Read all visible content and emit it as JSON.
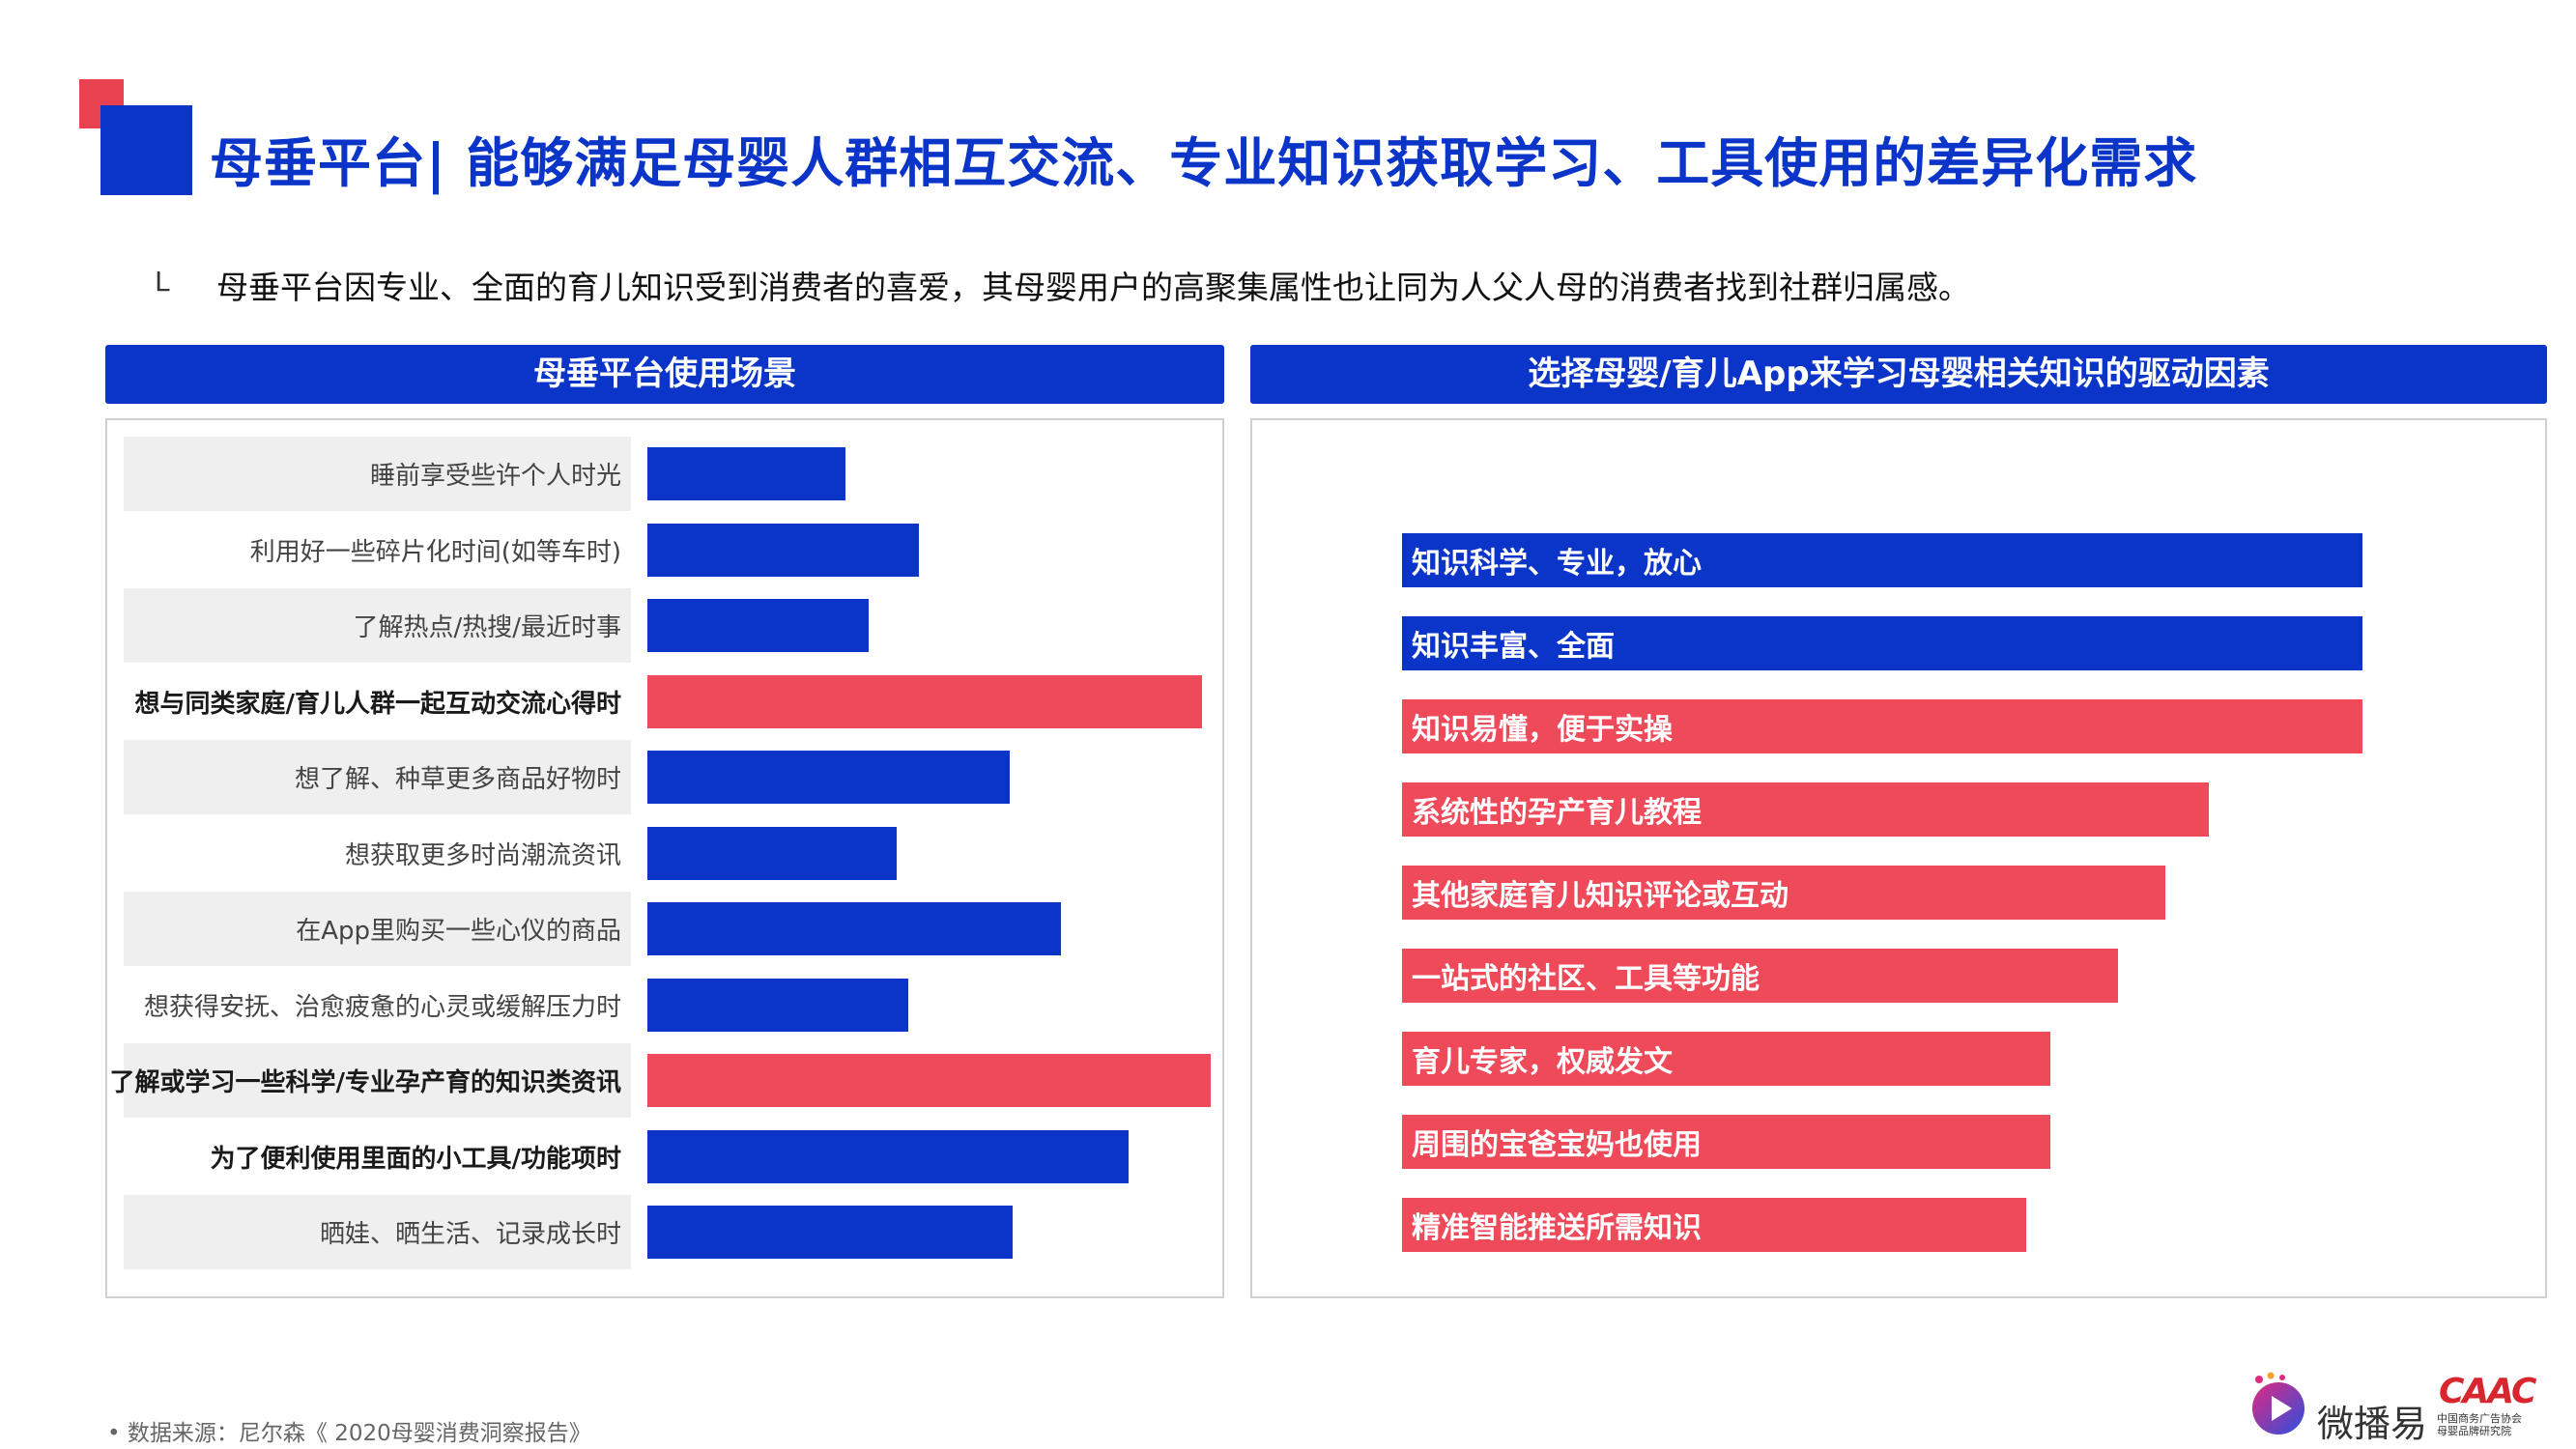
{
  "header": {
    "title": "母垂平台| 能够满足母婴人群相互交流、专业知识获取学习、工具使用的差异化需求",
    "bullet": "L",
    "subtitle": "母垂平台因专业、全面的育儿知识受到消费者的喜爱，其母婴用户的高聚集属性也让同为人父人母的消费者找到社群归属感。"
  },
  "colors": {
    "blue": "#0b35c9",
    "red": "#ef4a5a",
    "accent_red": "#e8414f"
  },
  "chart_data": [
    {
      "type": "bar",
      "orientation": "horizontal",
      "title": "母垂平台使用场景",
      "categories": [
        "睡前享受些许个人时光",
        "利用好一些碎片化时间(如等车时)",
        "了解热点/热搜/最近时事",
        "想与同类家庭/育儿人群一起互动交流心得时",
        "想了解、种草更多商品好物时",
        "想获取更多时尚潮流资讯",
        "在App里购买一些心仪的商品",
        "想获得安抚、治愈疲惫的心灵或缓解压力时",
        "了解或学习一些科学/专业孕产育的知识类资讯",
        "为了便利使用里面的小工具/功能项时",
        "晒娃、晒生活、记录成长时"
      ],
      "values": [
        35,
        48,
        39,
        98,
        64,
        44,
        73,
        46,
        99.5,
        85,
        64.5
      ],
      "highlight": [
        false,
        false,
        false,
        true,
        false,
        false,
        false,
        false,
        true,
        false,
        false
      ],
      "bold_labels": [
        false,
        false,
        false,
        true,
        false,
        false,
        false,
        false,
        true,
        true,
        false
      ],
      "xlim": [
        0,
        100
      ]
    },
    {
      "type": "bar",
      "orientation": "horizontal",
      "title": "选择母婴/育儿App来学习母婴相关知识的驱动因素",
      "categories": [
        "知识科学、专业，放心",
        "知识丰富、全面",
        "知识易懂，便于实操",
        "系统性的孕产育儿教程",
        "其他家庭育儿知识评论或互动",
        "一站式的社区、工具等功能",
        "育儿专家，权威发文",
        "周围的宝爸宝妈也使用",
        "精准智能推送所需知识"
      ],
      "values": [
        100,
        100,
        100,
        84,
        79.5,
        74.5,
        67.5,
        67.5,
        65
      ],
      "highlight": [
        false,
        false,
        true,
        true,
        true,
        true,
        true,
        true,
        true
      ],
      "xlim": [
        0,
        100
      ]
    }
  ],
  "footer": {
    "source": "数据来源：尼尔森《 2020母婴消费洞察报告》",
    "logo_text": "微播易",
    "caac_logo": "CAAC",
    "caac_sub_1": "中国商务广告协会",
    "caac_sub_2": "母婴品牌研究院"
  }
}
